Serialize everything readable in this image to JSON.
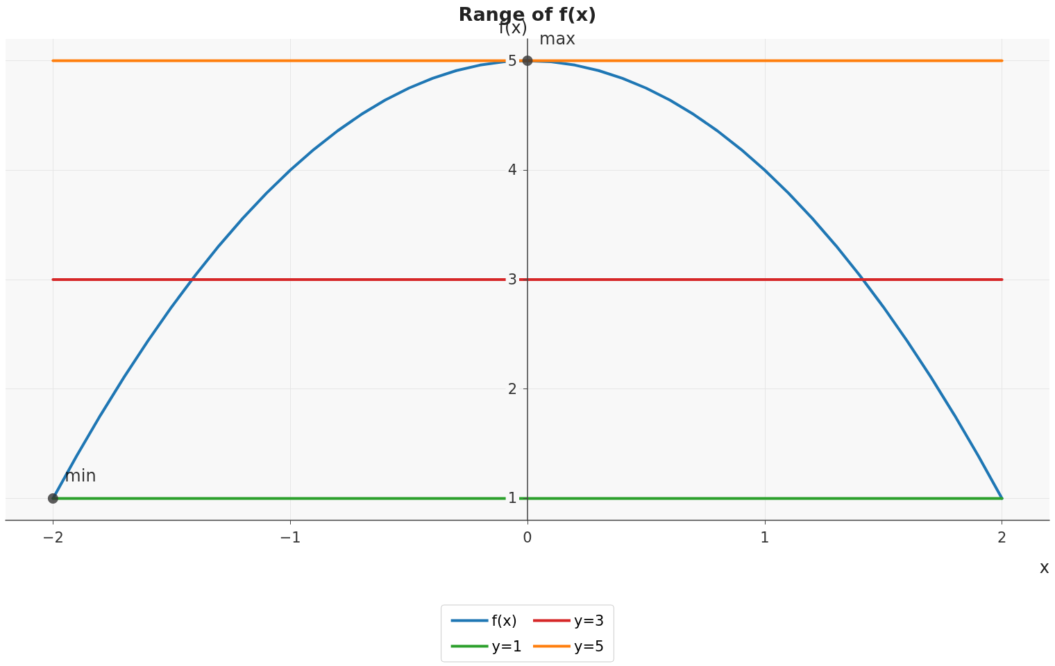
{
  "chart_data": {
    "type": "line",
    "title": "Range of f(x)",
    "xlabel": "x",
    "ylabel": "f(x)",
    "series": [
      {
        "name": "f(x)",
        "color": "#1f77b4",
        "x": [
          -2,
          -1.9,
          -1.8,
          -1.7,
          -1.6,
          -1.5,
          -1.4,
          -1.3,
          -1.2,
          -1.1,
          -1,
          -0.9,
          -0.8,
          -0.7,
          -0.6,
          -0.5,
          -0.4,
          -0.3,
          -0.2,
          -0.1,
          0,
          0.1,
          0.2,
          0.3,
          0.4,
          0.5,
          0.6,
          0.7,
          0.8,
          0.9,
          1,
          1.1,
          1.2,
          1.3,
          1.4,
          1.5,
          1.6,
          1.7,
          1.8,
          1.9,
          2
        ],
        "values": [
          1,
          1.39,
          1.76,
          2.11,
          2.44,
          2.75,
          3.04,
          3.31,
          3.56,
          3.79,
          4,
          4.19,
          4.36,
          4.51,
          4.64,
          4.75,
          4.84,
          4.91,
          4.96,
          4.99,
          5,
          4.99,
          4.96,
          4.91,
          4.84,
          4.75,
          4.64,
          4.51,
          4.36,
          4.19,
          4,
          3.79,
          3.56,
          3.31,
          3.04,
          2.75,
          2.44,
          2.11,
          1.76,
          1.39,
          1
        ]
      },
      {
        "name": "y=1",
        "color": "#2ca02c",
        "x": [
          -2,
          2
        ],
        "values": [
          1,
          1
        ]
      },
      {
        "name": "y=3",
        "color": "#d62728",
        "x": [
          -2,
          2
        ],
        "values": [
          3,
          3
        ]
      },
      {
        "name": "y=5",
        "color": "#ff7f0e",
        "x": [
          -2,
          2
        ],
        "values": [
          5,
          5
        ]
      },
      {
        "type": "scatter",
        "color": "#333333",
        "marker": "circle",
        "x": [
          -2,
          0
        ],
        "values": [
          1,
          5
        ]
      }
    ],
    "annotations": [
      {
        "text": "min",
        "x": -2,
        "y": 1
      },
      {
        "text": "max",
        "x": 0,
        "y": 5
      }
    ],
    "xlim": [
      -2.2,
      2.2
    ],
    "xticks": [
      {
        "value": -2,
        "label": "−2"
      },
      {
        "value": -1,
        "label": "−1"
      },
      0,
      1,
      2
    ],
    "ylim": [
      0.8,
      5.2
    ],
    "yticks": [
      1,
      2,
      3,
      4,
      5
    ],
    "grid": true,
    "legend": "bottom",
    "marker": "none",
    "line_style": "solid"
  }
}
